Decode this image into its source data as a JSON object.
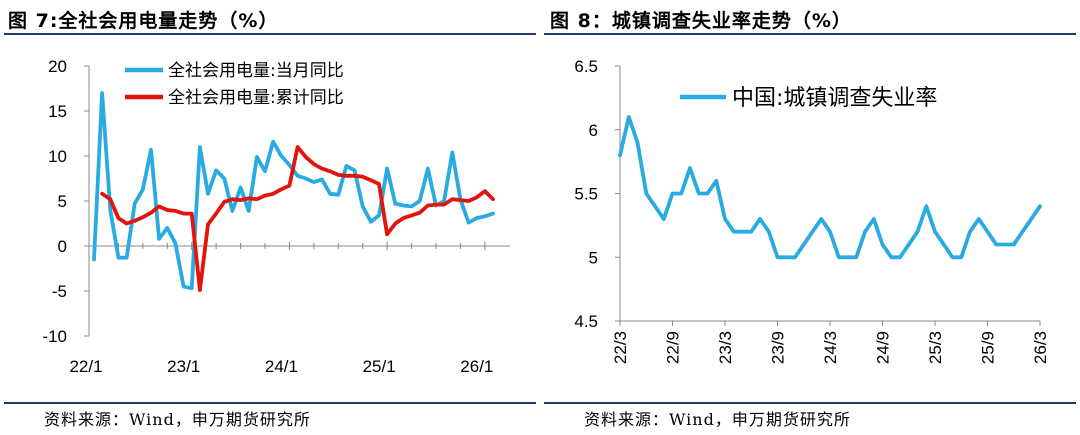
{
  "figure_left": {
    "title": "图 7:全社会用电量走势（%）",
    "source": "资料来源：Wind，申万期货研究所"
  },
  "figure_right": {
    "title": "图 8：城镇调查失业率走势（%）",
    "source": "资料来源：Wind，申万期货研究所"
  },
  "chart_data": [
    {
      "type": "line",
      "title": "全社会用电量走势（%）",
      "xlabel": "",
      "ylabel": "",
      "ylim": [
        -10,
        20
      ],
      "yticks": [
        -10,
        -5,
        0,
        5,
        10,
        15,
        20
      ],
      "x_tick_labels": [
        "22/1",
        "23/1",
        "24/1",
        "25/1",
        "26/1"
      ],
      "legend_position": "top",
      "colors": {
        "monthly": "#29abe2",
        "cumulative": "#e3140d"
      },
      "series": [
        {
          "name": "全社会用电量:当月同比",
          "color": "#29abe2",
          "x": [
            0,
            1,
            2,
            3,
            4,
            5,
            6,
            7,
            8,
            9,
            10,
            11,
            12,
            13,
            14,
            15,
            16,
            17,
            18,
            19,
            20,
            21,
            22,
            23,
            24,
            25,
            26,
            27,
            28,
            29,
            30,
            31,
            32,
            33,
            34,
            35,
            36,
            37,
            38,
            39,
            40,
            41,
            42,
            43,
            44,
            45,
            46,
            47,
            48,
            49
          ],
          "values": [
            -1.5,
            17,
            4,
            -1.3,
            -1.3,
            4.7,
            6.3,
            10.7,
            0.8,
            2,
            0.3,
            -4.5,
            -4.7,
            11,
            5.8,
            8.4,
            7.5,
            3.9,
            6.5,
            3.9,
            9.9,
            8.3,
            11.6,
            10,
            9,
            7.8,
            7.5,
            7.1,
            7.4,
            5.8,
            5.7,
            8.9,
            8.4,
            4.4,
            2.7,
            3.4,
            8.6,
            4.7,
            4.5,
            4.4,
            5,
            8.6,
            4.5,
            5,
            10.4,
            5.2,
            2.6,
            3.1,
            3.3,
            3.6
          ]
        },
        {
          "name": "全社会用电量:累计同比",
          "color": "#e3140d",
          "x": [
            1,
            2,
            3,
            4,
            5,
            6,
            7,
            8,
            9,
            10,
            11,
            12,
            13,
            14,
            15,
            16,
            17,
            18,
            19,
            20,
            21,
            22,
            23,
            24,
            25,
            26,
            27,
            28,
            29,
            30,
            31,
            32,
            33,
            34,
            35,
            36,
            37,
            38,
            39,
            40,
            41,
            42,
            43,
            44,
            45,
            46,
            47,
            48,
            49
          ],
          "values": [
            5.8,
            5.2,
            3.1,
            2.5,
            2.8,
            3.2,
            3.7,
            4.4,
            4,
            3.9,
            3.6,
            3.6,
            -4.9,
            2.4,
            3.6,
            4.9,
            5.2,
            5.1,
            5.3,
            5.2,
            5.6,
            5.8,
            6.3,
            6.7,
            11,
            9.9,
            9.1,
            8.6,
            8.3,
            7.9,
            7.8,
            7.8,
            7.7,
            7.3,
            6.9,
            1.3,
            2.5,
            3.1,
            3.4,
            3.7,
            4.5,
            4.6,
            4.6,
            5.2,
            5.1,
            5,
            5.4,
            6.1,
            5.2
          ]
        }
      ]
    },
    {
      "type": "line",
      "title": "城镇调查失业率走势（%）",
      "xlabel": "",
      "ylabel": "",
      "ylim": [
        4.5,
        6.5
      ],
      "yticks": [
        4.5,
        5,
        5.5,
        6,
        6.5
      ],
      "x_tick_labels": [
        "22/3",
        "22/9",
        "23/3",
        "23/9",
        "24/3",
        "24/9",
        "25/3",
        "25/9",
        "26/3"
      ],
      "legend_position": "top-center",
      "series": [
        {
          "name": "中国:城镇调查失业率",
          "color": "#29abe2",
          "values": [
            5.8,
            6.1,
            5.9,
            5.5,
            5.4,
            5.3,
            5.5,
            5.5,
            5.7,
            5.5,
            5.5,
            5.6,
            5.3,
            5.2,
            5.2,
            5.2,
            5.3,
            5.2,
            5.0,
            5.0,
            5.0,
            5.1,
            5.2,
            5.3,
            5.2,
            5.0,
            5.0,
            5.0,
            5.2,
            5.3,
            5.1,
            5.0,
            5.0,
            5.1,
            5.2,
            5.4,
            5.2,
            5.1,
            5.0,
            5.0,
            5.2,
            5.3,
            5.2,
            5.1,
            5.1,
            5.1,
            5.2,
            5.3,
            5.4
          ]
        }
      ]
    }
  ]
}
